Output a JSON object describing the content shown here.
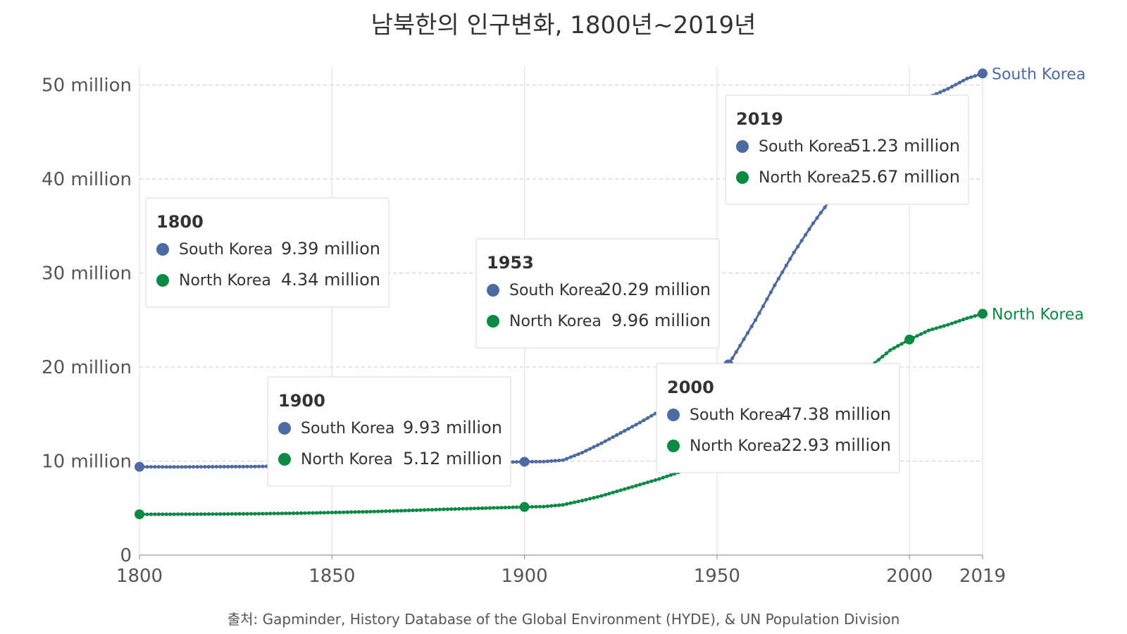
{
  "title": "남북한의 인구변화, 1800년~2019년",
  "source": "출처: Gapminder, History Database of the Global Environment (HYDE), & UN Population Division",
  "colors": {
    "south": "#4c6aa3",
    "south_light": "#cfd8ea",
    "north": "#0a8a42",
    "north_light": "#cde9d6",
    "grid": "#d0d0d0",
    "axis": "#999999"
  },
  "chart_data": {
    "type": "line",
    "title": "남북한의 인구변화, 1800년~2019년",
    "xlabel": "",
    "ylabel": "",
    "xlim": [
      1800,
      2019
    ],
    "ylim": [
      0,
      52000000
    ],
    "x_ticks": [
      1800,
      1850,
      1900,
      1950,
      2000,
      2019
    ],
    "x_tick_labels": [
      "1800",
      "1850",
      "1900",
      "1950",
      "2000",
      "2019"
    ],
    "y_ticks": [
      0,
      10000000,
      20000000,
      30000000,
      40000000,
      50000000
    ],
    "y_tick_labels": [
      "0",
      "10 million",
      "20 million",
      "30 million",
      "40 million",
      "50 million"
    ],
    "grid": true,
    "legend": "line end labels (right)",
    "series": [
      {
        "name": "South Korea",
        "color": "#4c6aa3",
        "points": [
          [
            1800,
            9390000
          ],
          [
            1810,
            9380000
          ],
          [
            1820,
            9400000
          ],
          [
            1830,
            9420000
          ],
          [
            1840,
            9480000
          ],
          [
            1850,
            9560000
          ],
          [
            1860,
            9640000
          ],
          [
            1870,
            9720000
          ],
          [
            1880,
            9790000
          ],
          [
            1890,
            9860000
          ],
          [
            1900,
            9930000
          ],
          [
            1905,
            9950000
          ],
          [
            1910,
            10100000
          ],
          [
            1915,
            10900000
          ],
          [
            1920,
            11900000
          ],
          [
            1925,
            13000000
          ],
          [
            1930,
            14100000
          ],
          [
            1935,
            15300000
          ],
          [
            1940,
            16600000
          ],
          [
            1945,
            17900000
          ],
          [
            1950,
            19200000
          ],
          [
            1953,
            20290000
          ],
          [
            1955,
            21600000
          ],
          [
            1960,
            25000000
          ],
          [
            1965,
            28700000
          ],
          [
            1970,
            32200000
          ],
          [
            1975,
            35300000
          ],
          [
            1980,
            38100000
          ],
          [
            1985,
            40800000
          ],
          [
            1990,
            42900000
          ],
          [
            1995,
            45100000
          ],
          [
            2000,
            47380000
          ],
          [
            2005,
            48700000
          ],
          [
            2010,
            49600000
          ],
          [
            2015,
            50700000
          ],
          [
            2019,
            51230000
          ]
        ]
      },
      {
        "name": "North Korea",
        "color": "#0a8a42",
        "points": [
          [
            1800,
            4340000
          ],
          [
            1810,
            4350000
          ],
          [
            1820,
            4370000
          ],
          [
            1830,
            4400000
          ],
          [
            1840,
            4450000
          ],
          [
            1850,
            4530000
          ],
          [
            1860,
            4620000
          ],
          [
            1870,
            4750000
          ],
          [
            1880,
            4880000
          ],
          [
            1890,
            5000000
          ],
          [
            1900,
            5120000
          ],
          [
            1905,
            5160000
          ],
          [
            1910,
            5350000
          ],
          [
            1915,
            5800000
          ],
          [
            1920,
            6300000
          ],
          [
            1925,
            6900000
          ],
          [
            1930,
            7500000
          ],
          [
            1935,
            8100000
          ],
          [
            1940,
            8800000
          ],
          [
            1945,
            9400000
          ],
          [
            1950,
            9900000
          ],
          [
            1953,
            9960000
          ],
          [
            1955,
            10300000
          ],
          [
            1960,
            11400000
          ],
          [
            1965,
            12600000
          ],
          [
            1970,
            14400000
          ],
          [
            1975,
            16000000
          ],
          [
            1980,
            17300000
          ],
          [
            1985,
            18600000
          ],
          [
            1990,
            20100000
          ],
          [
            1995,
            21800000
          ],
          [
            2000,
            22930000
          ],
          [
            2005,
            23900000
          ],
          [
            2010,
            24500000
          ],
          [
            2015,
            25200000
          ],
          [
            2019,
            25670000
          ]
        ]
      }
    ],
    "end_labels": [
      "South Korea",
      "North Korea"
    ],
    "tooltips": [
      {
        "year": "1800",
        "rows": [
          {
            "name": "South Korea",
            "value": "9.39 million"
          },
          {
            "name": "North Korea",
            "value": "4.34 million"
          }
        ]
      },
      {
        "year": "1900",
        "rows": [
          {
            "name": "South Korea",
            "value": "9.93 million"
          },
          {
            "name": "North Korea",
            "value": "5.12 million"
          }
        ]
      },
      {
        "year": "1953",
        "rows": [
          {
            "name": "South Korea",
            "value": "20.29 million"
          },
          {
            "name": "North Korea",
            "value": "9.96 million"
          }
        ]
      },
      {
        "year": "2000",
        "rows": [
          {
            "name": "South Korea",
            "value": "47.38 million"
          },
          {
            "name": "North Korea",
            "value": "22.93 million"
          }
        ]
      },
      {
        "year": "2019",
        "rows": [
          {
            "name": "South Korea",
            "value": "51.23 million"
          },
          {
            "name": "North Korea",
            "value": "25.67 million"
          }
        ]
      }
    ],
    "highlight_years": [
      1800,
      1900,
      1953,
      2000,
      2019
    ]
  }
}
